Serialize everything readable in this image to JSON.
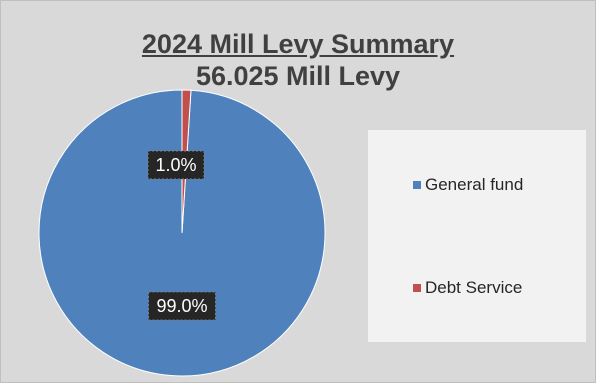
{
  "chart_data": {
    "type": "pie",
    "title": "2024 Mill Levy Summary",
    "subtitle": "56.025 Mill Levy",
    "slices": [
      {
        "name": "General fund",
        "value": 99.0,
        "label": "99.0%",
        "color": "#4f81bd"
      },
      {
        "name": "Debt Service",
        "value": 1.0,
        "label": "1.0%",
        "color": "#c0504d"
      }
    ],
    "legend_position": "right"
  }
}
